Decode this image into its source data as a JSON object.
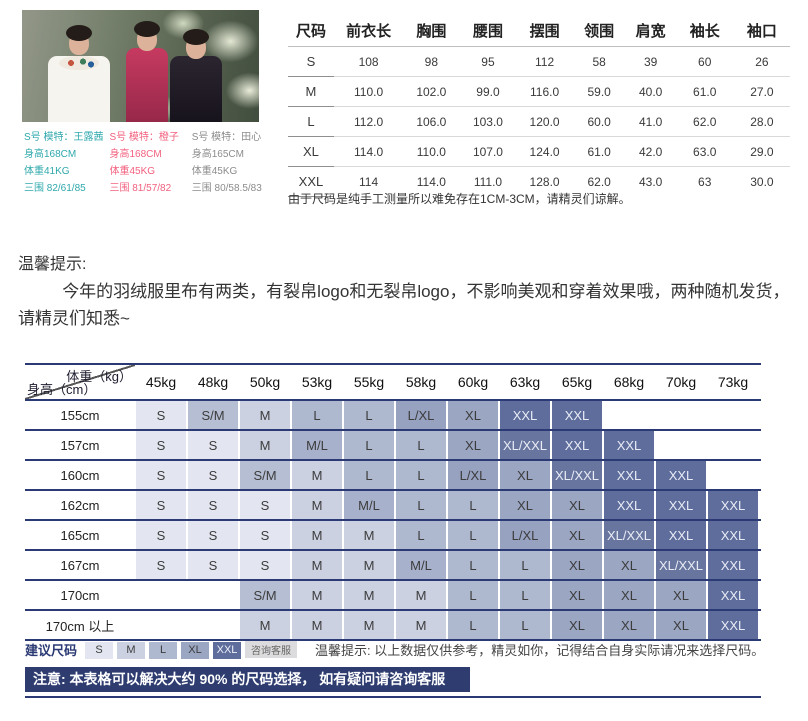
{
  "model_info": [
    {
      "color": "#2fa8ad",
      "lines": [
        "S号 模特：王露茜",
        "身高168CM",
        "体重41KG",
        "三围 82/61/85"
      ]
    },
    {
      "color": "#f2607e",
      "lines": [
        "S号 模特：橙子",
        "身高168CM",
        "体重45KG",
        "三围 81/57/82"
      ]
    },
    {
      "color": "#8c8c8c",
      "lines": [
        "S号 模特：田心",
        "身高165CM",
        "体重45KG",
        "三围 80/58.5/83"
      ]
    }
  ],
  "size_table": {
    "headers": [
      "尺码",
      "前衣长",
      "胸围",
      "腰围",
      "摆围",
      "领围",
      "肩宽",
      "袖长",
      "袖口"
    ],
    "rows": [
      [
        "S",
        "108",
        "98",
        "95",
        "112",
        "58",
        "39",
        "60",
        "26"
      ],
      [
        "M",
        "110.0",
        "102.0",
        "99.0",
        "116.0",
        "59.0",
        "40.0",
        "61.0",
        "27.0"
      ],
      [
        "L",
        "112.0",
        "106.0",
        "103.0",
        "120.0",
        "60.0",
        "41.0",
        "62.0",
        "28.0"
      ],
      [
        "XL",
        "114.0",
        "110.0",
        "107.0",
        "124.0",
        "61.0",
        "42.0",
        "63.0",
        "29.0"
      ],
      [
        "XXL",
        "114",
        "114.0",
        "111.0",
        "128.0",
        "62.0",
        "43.0",
        "63",
        "30.0"
      ]
    ],
    "note": "由于尺码是纯手工测量所以难免存在1CM-3CM，请精灵们谅解。"
  },
  "tips": {
    "title": "温馨提示:",
    "body": "今年的羽绒服里布有两类，有裂帛logo和无裂帛logo，不影响美观和穿着效果哦，两种随机发货，请精灵们知悉~"
  },
  "size_matrix": {
    "type": "table",
    "corner_top": "体重（kg）",
    "corner_bottom": "身高（cm）",
    "weight_headers": [
      "45kg",
      "48kg",
      "50kg",
      "53kg",
      "55kg",
      "58kg",
      "60kg",
      "63kg",
      "65kg",
      "68kg",
      "70kg",
      "73kg"
    ],
    "height_rows": [
      {
        "height": "155cm",
        "cells": [
          "S",
          "S/M",
          "M",
          "L",
          "L",
          "L/XL",
          "XL",
          "XXL",
          "XXL",
          "",
          "",
          ""
        ]
      },
      {
        "height": "157cm",
        "cells": [
          "S",
          "S",
          "M",
          "M/L",
          "L",
          "L",
          "XL",
          "XL/XXL",
          "XXL",
          "XXL",
          "",
          ""
        ]
      },
      {
        "height": "160cm",
        "cells": [
          "S",
          "S",
          "S/M",
          "M",
          "L",
          "L",
          "L/XL",
          "XL",
          "XL/XXL",
          "XXL",
          "XXL",
          ""
        ]
      },
      {
        "height": "162cm",
        "cells": [
          "S",
          "S",
          "S",
          "M",
          "M/L",
          "L",
          "L",
          "XL",
          "XL",
          "XXL",
          "XXL",
          "XXL"
        ]
      },
      {
        "height": "165cm",
        "cells": [
          "S",
          "S",
          "S",
          "M",
          "M",
          "L",
          "L",
          "L/XL",
          "XL",
          "XL/XXL",
          "XXL",
          "XXL"
        ]
      },
      {
        "height": "167cm",
        "cells": [
          "S",
          "S",
          "S",
          "M",
          "M",
          "M/L",
          "L",
          "L",
          "XL",
          "XL",
          "XL/XXL",
          "XXL"
        ]
      },
      {
        "height": "170cm",
        "cells": [
          "",
          "",
          "S/M",
          "M",
          "M",
          "M",
          "L",
          "L",
          "XL",
          "XL",
          "XL",
          "XXL"
        ]
      },
      {
        "height": "170cm 以上",
        "cells": [
          "",
          "",
          "M",
          "M",
          "M",
          "M",
          "L",
          "L",
          "XL",
          "XL",
          "XL",
          "XXL"
        ]
      }
    ],
    "size_colors": {
      "S": "#e3e6f0",
      "S/M": "#b6bed3",
      "M": "#cbd1e1",
      "M/L": "#a7b1cb",
      "L": "#aeb8cf",
      "L/XL": "#97a2c1",
      "XL": "#9ba6c3",
      "XL/XXL": "#68769f",
      "XXL": "#5e6d9c"
    },
    "light_text_sizes": [
      "XL/XXL",
      "XXL"
    ]
  },
  "suggest": {
    "label": "建议尺码",
    "chips": [
      "S",
      "M",
      "L",
      "XL",
      "XXL"
    ],
    "service_chip": "咨询客服",
    "tip": "温馨提示: 以上数据仅供参考，精灵如你，记得结合自身实际请况来选择尺码。"
  },
  "notice": "注意: 本表格可以解决大约 90% 的尺码选择， 如有疑问请咨询客服",
  "colors": {
    "navy": "#2b3a74",
    "notice_bg": "#2e3c70",
    "teal": "#2fa8ad",
    "pink": "#f2607e",
    "gray": "#8c8c8c"
  }
}
